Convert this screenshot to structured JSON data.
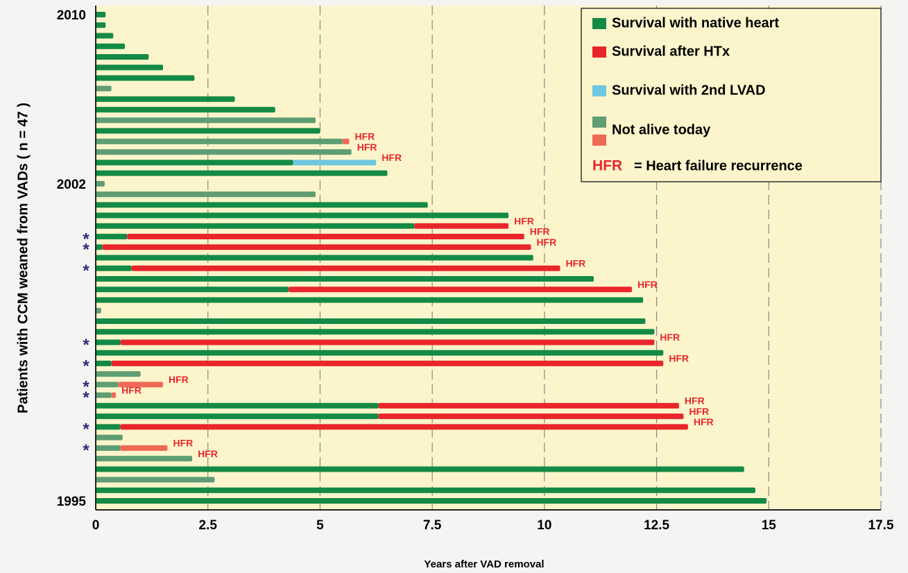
{
  "chart_data": {
    "type": "swimmer",
    "x_label": "Years after VAD removal",
    "y_label": "Patients with CCM weaned from VADs ( n = 47 )",
    "categories": [
      "2010",
      null,
      null,
      null,
      null,
      null,
      null,
      null,
      null,
      null,
      null,
      null,
      null,
      null,
      null,
      null,
      "2002",
      null,
      null,
      null,
      null,
      null,
      null,
      null,
      null,
      null,
      null,
      null,
      null,
      null,
      null,
      null,
      null,
      null,
      null,
      null,
      null,
      null,
      null,
      null,
      null,
      null,
      null,
      null,
      null,
      null,
      "1995"
    ],
    "xlim": [
      0,
      17.5
    ],
    "xticks": [
      0,
      2.5,
      5,
      7.5,
      10,
      12.5,
      15,
      17.5
    ],
    "grid": true,
    "series": [
      {
        "name": "Survival with native heart",
        "color": "#138a45",
        "faded_color": "#5f9d73",
        "values": [
          0.22,
          0.22,
          0.39,
          0.65,
          1.18,
          1.5,
          2.2,
          0.35,
          3.1,
          4.0,
          4.9,
          5.0,
          5.5,
          5.7,
          4.4,
          6.5,
          0.2,
          4.9,
          7.4,
          9.2,
          7.1,
          0.7,
          0.15,
          9.75,
          0.8,
          11.1,
          4.3,
          12.2,
          0.12,
          12.25,
          12.45,
          0.55,
          12.65,
          0.35,
          1.0,
          0.5,
          0.35,
          6.3,
          6.3,
          0.55,
          0.6,
          0.55,
          2.15,
          14.45,
          2.65,
          14.7,
          14.95
        ]
      },
      {
        "name": "Survival after HTx",
        "color": "#e8262b",
        "faded_color": "#ef6a55",
        "values": [
          null,
          null,
          null,
          null,
          null,
          null,
          null,
          null,
          null,
          null,
          null,
          null,
          0.15,
          null,
          null,
          null,
          null,
          null,
          null,
          null,
          2.1,
          8.85,
          9.55,
          null,
          9.55,
          null,
          7.65,
          null,
          null,
          null,
          null,
          11.9,
          null,
          12.3,
          null,
          1.0,
          0.1,
          6.7,
          6.8,
          12.65,
          null,
          1.05,
          null,
          null,
          null,
          null,
          null
        ]
      },
      {
        "name": "Survival with 2nd LVAD",
        "color": "#6ec6e0",
        "faded_color": "#6ec6e0",
        "values": [
          null,
          null,
          null,
          null,
          null,
          null,
          null,
          null,
          null,
          null,
          null,
          null,
          null,
          null,
          1.85,
          null,
          null,
          null,
          null,
          null,
          null,
          null,
          null,
          null,
          null,
          null,
          null,
          null,
          null,
          null,
          null,
          null,
          null,
          null,
          null,
          null,
          null,
          null,
          null,
          null,
          null,
          null,
          null,
          null,
          null,
          null,
          null
        ]
      }
    ],
    "not_alive": {
      "name": "Not alive today",
      "rows": [
        false,
        false,
        false,
        false,
        false,
        false,
        false,
        true,
        false,
        false,
        true,
        false,
        true,
        true,
        false,
        false,
        true,
        true,
        false,
        false,
        false,
        false,
        false,
        false,
        false,
        false,
        false,
        false,
        true,
        false,
        false,
        false,
        false,
        false,
        true,
        true,
        true,
        false,
        false,
        false,
        true,
        true,
        true,
        false,
        true,
        false,
        false
      ]
    },
    "hfr": {
      "label": "HFR",
      "rows": [
        false,
        false,
        false,
        false,
        false,
        false,
        false,
        false,
        false,
        false,
        false,
        false,
        true,
        true,
        true,
        false,
        false,
        false,
        false,
        false,
        true,
        true,
        true,
        false,
        true,
        false,
        true,
        false,
        false,
        false,
        false,
        true,
        false,
        true,
        false,
        true,
        true,
        true,
        true,
        true,
        false,
        true,
        true,
        false,
        false,
        false,
        false
      ]
    },
    "marker": {
      "label": "*",
      "rows": [
        false,
        false,
        false,
        false,
        false,
        false,
        false,
        false,
        false,
        false,
        false,
        false,
        false,
        false,
        false,
        false,
        false,
        false,
        false,
        false,
        false,
        true,
        true,
        false,
        true,
        false,
        false,
        false,
        false,
        false,
        false,
        true,
        false,
        true,
        false,
        true,
        true,
        false,
        false,
        true,
        false,
        true,
        false,
        false,
        false,
        false,
        false
      ]
    },
    "legend_note": {
      "abbr": "HFR",
      "text": "= Heart failure recurrence"
    }
  }
}
